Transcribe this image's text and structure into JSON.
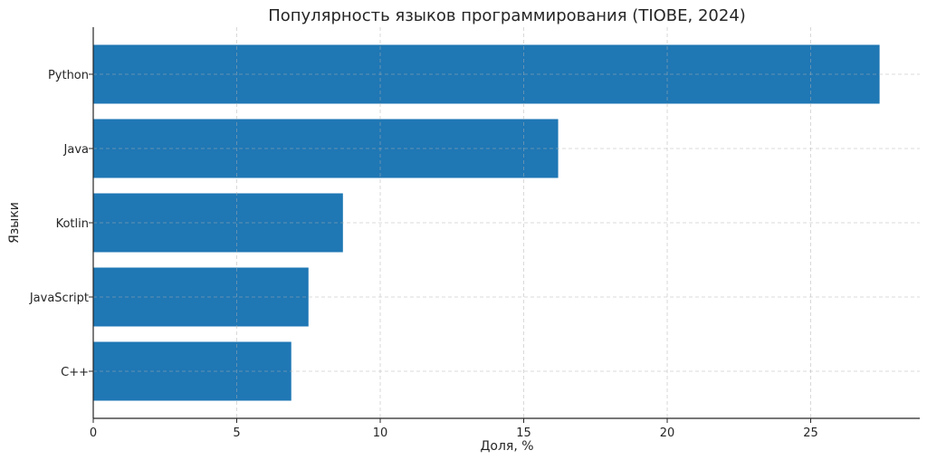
{
  "chart_data": {
    "type": "bar",
    "orientation": "horizontal",
    "title": "Популярность языков программирования (TIOBE, 2024)",
    "xlabel": "Доля, %",
    "ylabel": "Языки",
    "categories": [
      "Python",
      "Java",
      "Kotlin",
      "JavaScript",
      "C++"
    ],
    "values": [
      27.4,
      16.2,
      8.7,
      7.5,
      6.9
    ],
    "xlim": [
      0,
      28.8
    ],
    "xticks": [
      0,
      5,
      10,
      15,
      20,
      25
    ],
    "grid": true,
    "bar_color": "#1f77b4"
  }
}
